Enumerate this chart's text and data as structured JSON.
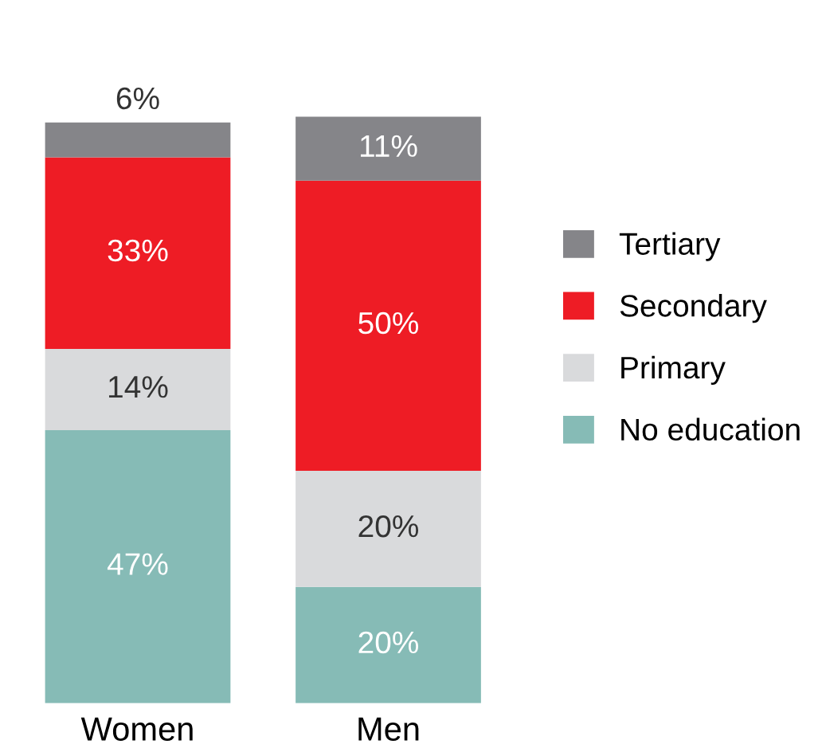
{
  "chart_data": {
    "type": "bar",
    "stacked": true,
    "categories": [
      "Women",
      "Men"
    ],
    "legend": "right",
    "series": [
      {
        "name": "No education",
        "color": "#86bbb6",
        "values": [
          47,
          20
        ],
        "value_labels": [
          "47%",
          "20%"
        ]
      },
      {
        "name": "Primary",
        "color": "#d9dadc",
        "values": [
          14,
          20
        ],
        "value_labels": [
          "14%",
          "20%"
        ]
      },
      {
        "name": "Secondary",
        "color": "#ee1c25",
        "values": [
          33,
          50
        ],
        "value_labels": [
          "33%",
          "50%"
        ]
      },
      {
        "name": "Tertiary",
        "color": "#858589",
        "values": [
          6,
          11
        ],
        "value_labels": [
          "6%",
          "11%"
        ]
      }
    ]
  }
}
